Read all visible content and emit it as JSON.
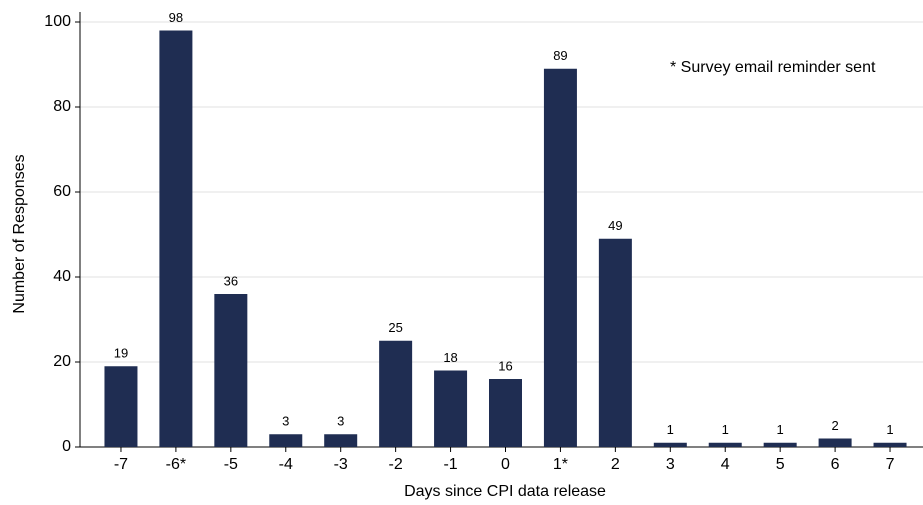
{
  "chart_data": {
    "type": "bar",
    "x_label": "Days since CPI data release",
    "y_label": "Number of Responses",
    "annotation": "* Survey email reminder sent",
    "categories": [
      "-7",
      "-6*",
      "-5",
      "-4",
      "-3",
      "-2",
      "-1",
      "0",
      "1*",
      "2",
      "3",
      "4",
      "5",
      "6",
      "7"
    ],
    "values": [
      19,
      98,
      36,
      3,
      3,
      25,
      18,
      16,
      89,
      49,
      1,
      1,
      1,
      2,
      1
    ],
    "color": "#1f2d52",
    "ylim": [
      0,
      100
    ],
    "yticks": [
      0,
      20,
      40,
      60,
      80,
      100
    ],
    "grid": true
  }
}
